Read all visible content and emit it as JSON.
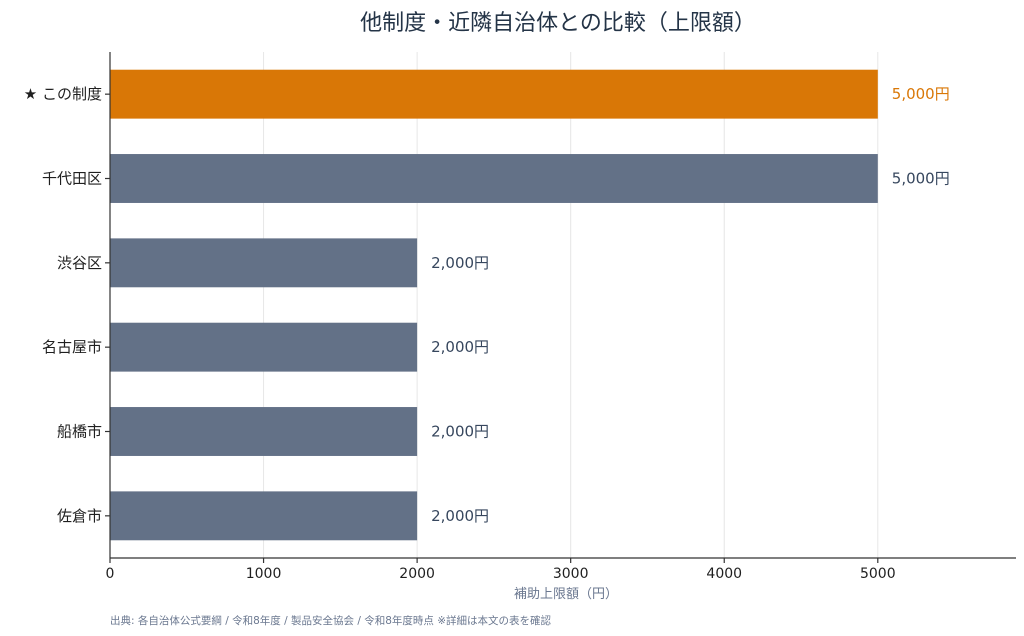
{
  "chart_data": {
    "type": "bar",
    "orientation": "horizontal",
    "title": "他制度・近隣自治体との比較（上限額）",
    "xlabel": "補助上限額（円）",
    "categories": [
      "★ この制度",
      "千代田区",
      "渋谷区",
      "名古屋市",
      "船橋市",
      "佐倉市"
    ],
    "values": [
      5000,
      5000,
      2000,
      2000,
      2000,
      2000
    ],
    "value_labels": [
      "5,000円",
      "5,000円",
      "2,000円",
      "2,000円",
      "2,000円",
      "2,000円"
    ],
    "highlight_index": 0,
    "xlim": [
      0,
      5900
    ],
    "xticks": [
      0,
      1000,
      2000,
      3000,
      4000,
      5000
    ],
    "grid": "vertical",
    "colors": {
      "highlight": "#d97706",
      "default": "#637187",
      "highlight_text": "#d97706",
      "default_text": "#37475e"
    }
  },
  "source_note": "出典: 各自治体公式要綱 / 令和8年度 / 製品安全協会 / 令和8年度時点 ※詳細は本文の表を確認"
}
